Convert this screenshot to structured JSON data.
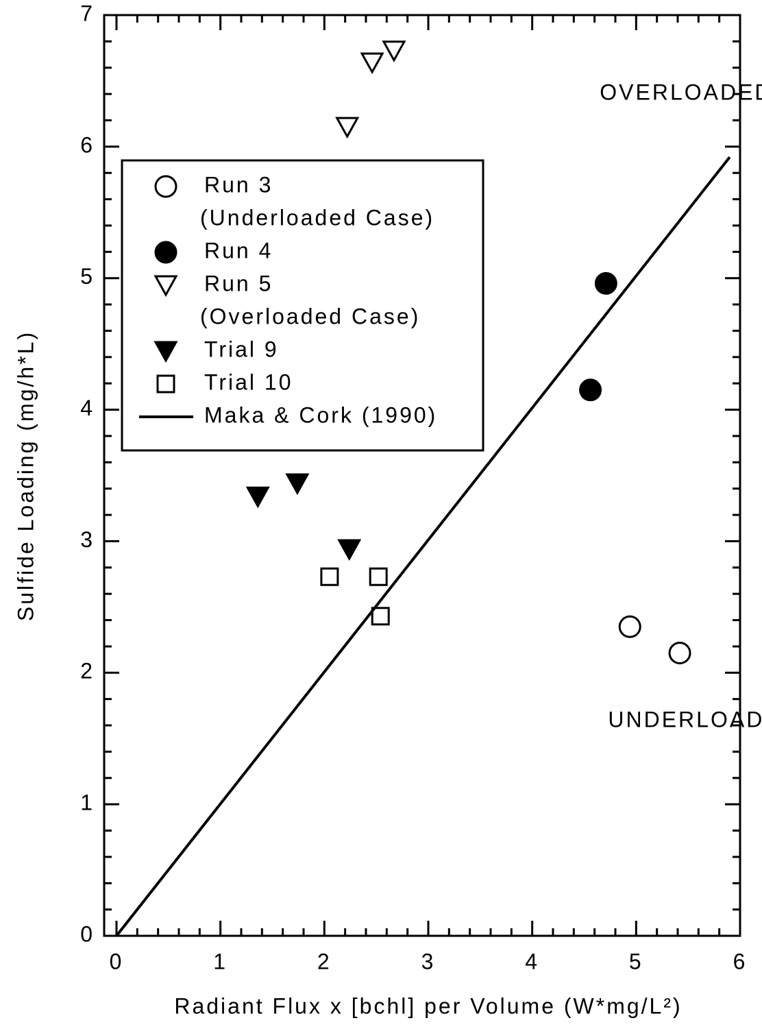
{
  "chart_data": {
    "type": "scatter",
    "xlabel": "Radiant Flux x [bchl] per Volume (W*mg/L²)",
    "ylabel": "Sulfide Loading (mg/h*L)",
    "xlim": [
      0,
      6
    ],
    "ylim": [
      0,
      7
    ],
    "xticks": [
      0,
      1,
      2,
      3,
      4,
      5,
      6
    ],
    "yticks": [
      0,
      1,
      2,
      3,
      4,
      5,
      6,
      7
    ],
    "x_minor_ticks": [
      0.2,
      0.4,
      0.6,
      0.8,
      1.2,
      1.4,
      1.6,
      1.8,
      2.2,
      2.4,
      2.6,
      2.8,
      3.2,
      3.4,
      3.6,
      3.8,
      4.2,
      4.4,
      4.6,
      4.8,
      5.2,
      5.4,
      5.6,
      5.8
    ],
    "y_minor_ticks": [
      0.2,
      0.4,
      0.6,
      0.8,
      1.2,
      1.4,
      1.6,
      1.8,
      2.2,
      2.4,
      2.6,
      2.8,
      3.2,
      3.4,
      3.6,
      3.8,
      4.2,
      4.4,
      4.6,
      4.8,
      5.2,
      5.4,
      5.6,
      5.8,
      6.2,
      6.4,
      6.6,
      6.8
    ],
    "color": "#000000",
    "series": [
      {
        "name": "Run 3",
        "note": "(Underloaded Case)",
        "marker": "circle-open",
        "x": [
          4.94,
          5.42
        ],
        "values": [
          2.35,
          2.15
        ]
      },
      {
        "name": "Run 4",
        "marker": "circle-filled",
        "x": [
          4.71,
          4.56
        ],
        "values": [
          4.96,
          4.15
        ]
      },
      {
        "name": "Run 5",
        "note": "(Overloaded Case)",
        "marker": "triangle-down-open",
        "x": [
          2.46,
          2.67,
          2.22
        ],
        "values": [
          6.64,
          6.73,
          6.15
        ]
      },
      {
        "name": "Trial 9",
        "marker": "triangle-down-filled",
        "x": [
          1.36,
          1.74,
          2.24
        ],
        "values": [
          3.34,
          3.44,
          2.94
        ]
      },
      {
        "name": "Trial 10",
        "marker": "square-open",
        "x": [
          2.05,
          2.52,
          2.54
        ],
        "values": [
          2.73,
          2.73,
          2.43
        ]
      },
      {
        "name": "Maka & Cork (1990)",
        "marker": "line",
        "x": [
          0,
          5.9
        ],
        "values": [
          0,
          5.92
        ]
      }
    ],
    "annotations": [
      {
        "text": "OVERLOADED",
        "x": 4.65,
        "y": 6.4
      },
      {
        "text": "UNDERLOADED",
        "x": 4.73,
        "y": 1.63
      }
    ]
  }
}
